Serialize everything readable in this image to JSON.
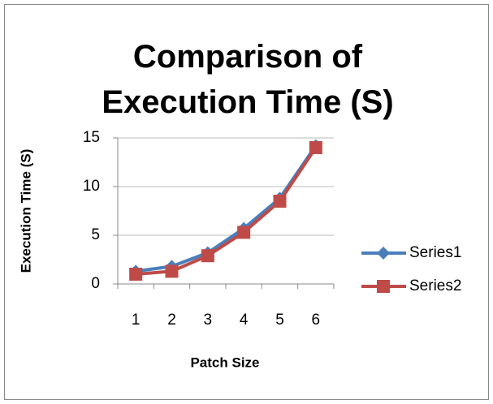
{
  "chart_data": {
    "type": "line",
    "title": "Comparison of Execution Time (S)",
    "x_label": "Patch Size",
    "y_label": "Execution Time (S)",
    "categories": [
      "1",
      "2",
      "3",
      "4",
      "5",
      "6"
    ],
    "series": [
      {
        "name": "Series1",
        "color": "#4a7ebb",
        "marker": "diamond",
        "values": [
          1.3,
          1.8,
          3.2,
          5.7,
          8.8,
          14.2
        ]
      },
      {
        "name": "Series2",
        "color": "#be4b48",
        "marker": "square",
        "values": [
          1.0,
          1.3,
          2.9,
          5.3,
          8.5,
          14.0
        ]
      }
    ],
    "ylim": [
      0,
      15
    ],
    "yticks": [
      0,
      5,
      10,
      15
    ],
    "grid": true,
    "legend": "right"
  }
}
